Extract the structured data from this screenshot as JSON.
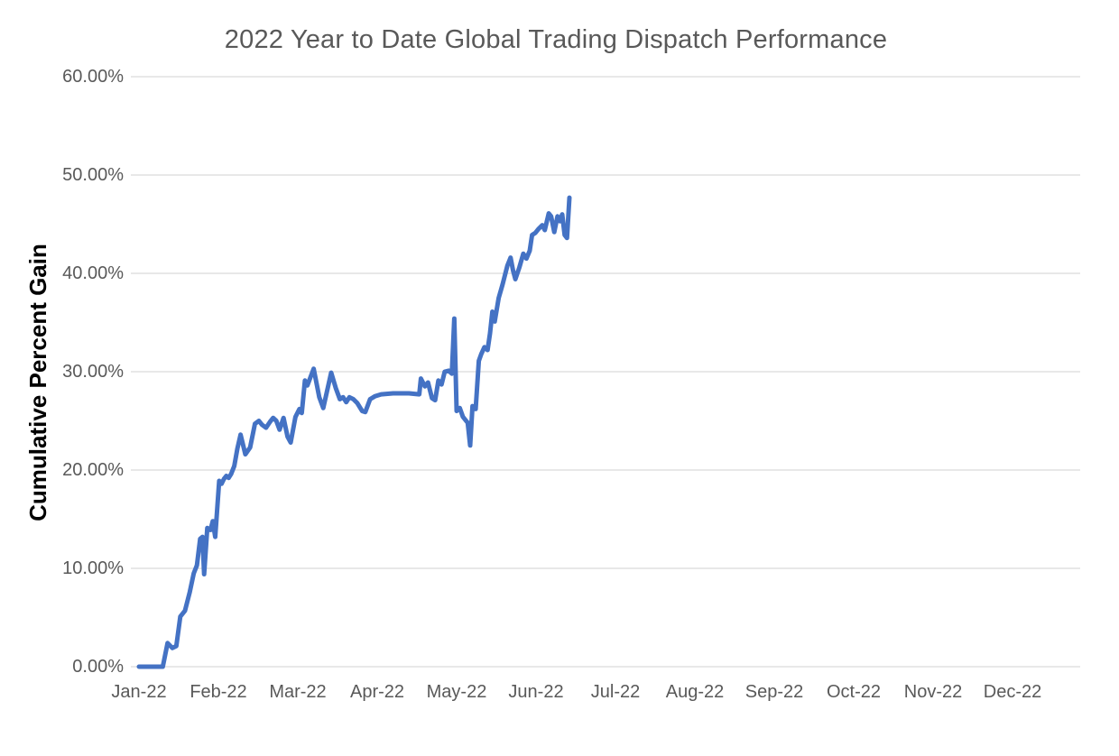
{
  "chart_data": {
    "type": "line",
    "title": "2022 Year to Date Global Trading Dispatch Performance",
    "ylabel": "Cumulative Percent Gain",
    "xlabel": "",
    "x_ticks": [
      "Jan-22",
      "Feb-22",
      "Mar-22",
      "Apr-22",
      "May-22",
      "Jun-22",
      "Jul-22",
      "Aug-22",
      "Sep-22",
      "Oct-22",
      "Nov-22",
      "Dec-22"
    ],
    "y_tick_labels": [
      "0.00%",
      "10.00%",
      "20.00%",
      "30.00%",
      "40.00%",
      "50.00%",
      "60.00%"
    ],
    "y_tick_values": [
      0,
      10,
      20,
      30,
      40,
      50,
      60
    ],
    "ylim": [
      0,
      60
    ],
    "x_unit": "months_since_jan_2022",
    "x_range_months": [
      0,
      11.85
    ],
    "grid": true,
    "legend": false,
    "colors": {
      "line": "#4472C4",
      "grid": "#D9D9D9",
      "title_text": "#595959",
      "tick_text": "#595959",
      "axis_title_text": "#000000",
      "background": "#FFFFFF"
    },
    "series": [
      {
        "name": "cumulative-percent-gain",
        "color": "#4472C4",
        "points": [
          [
            0.0,
            0.0
          ],
          [
            0.1,
            0.0
          ],
          [
            0.2,
            0.0
          ],
          [
            0.3,
            0.0
          ],
          [
            0.36,
            2.4
          ],
          [
            0.42,
            1.9
          ],
          [
            0.47,
            2.1
          ],
          [
            0.52,
            5.1
          ],
          [
            0.58,
            5.7
          ],
          [
            0.64,
            7.6
          ],
          [
            0.69,
            9.5
          ],
          [
            0.73,
            10.3
          ],
          [
            0.77,
            13.0
          ],
          [
            0.8,
            13.2
          ],
          [
            0.82,
            9.4
          ],
          [
            0.86,
            14.1
          ],
          [
            0.9,
            13.9
          ],
          [
            0.93,
            14.8
          ],
          [
            0.96,
            13.2
          ],
          [
            1.01,
            18.9
          ],
          [
            1.04,
            18.6
          ],
          [
            1.07,
            19.1
          ],
          [
            1.1,
            19.4
          ],
          [
            1.13,
            19.2
          ],
          [
            1.16,
            19.6
          ],
          [
            1.2,
            20.4
          ],
          [
            1.24,
            22.2
          ],
          [
            1.28,
            23.6
          ],
          [
            1.34,
            21.6
          ],
          [
            1.4,
            22.3
          ],
          [
            1.46,
            24.7
          ],
          [
            1.51,
            25.0
          ],
          [
            1.55,
            24.6
          ],
          [
            1.6,
            24.3
          ],
          [
            1.65,
            24.9
          ],
          [
            1.69,
            25.3
          ],
          [
            1.73,
            25.0
          ],
          [
            1.77,
            24.1
          ],
          [
            1.82,
            25.3
          ],
          [
            1.87,
            23.4
          ],
          [
            1.91,
            22.8
          ],
          [
            1.97,
            25.4
          ],
          [
            2.02,
            26.2
          ],
          [
            2.05,
            25.8
          ],
          [
            2.09,
            29.1
          ],
          [
            2.12,
            28.6
          ],
          [
            2.2,
            30.3
          ],
          [
            2.27,
            27.4
          ],
          [
            2.32,
            26.3
          ],
          [
            2.42,
            29.9
          ],
          [
            2.48,
            28.3
          ],
          [
            2.53,
            27.2
          ],
          [
            2.57,
            27.4
          ],
          [
            2.61,
            26.9
          ],
          [
            2.65,
            27.4
          ],
          [
            2.7,
            27.2
          ],
          [
            2.75,
            26.8
          ],
          [
            2.81,
            26.0
          ],
          [
            2.85,
            25.9
          ],
          [
            2.91,
            27.2
          ],
          [
            2.97,
            27.5
          ],
          [
            3.05,
            27.7
          ],
          [
            3.2,
            27.8
          ],
          [
            3.4,
            27.8
          ],
          [
            3.53,
            27.7
          ],
          [
            3.55,
            29.3
          ],
          [
            3.6,
            28.5
          ],
          [
            3.64,
            28.9
          ],
          [
            3.69,
            27.3
          ],
          [
            3.73,
            27.1
          ],
          [
            3.77,
            29.1
          ],
          [
            3.81,
            28.7
          ],
          [
            3.85,
            30.0
          ],
          [
            3.9,
            30.1
          ],
          [
            3.94,
            29.8
          ],
          [
            3.97,
            35.4
          ],
          [
            4.0,
            26.0
          ],
          [
            4.04,
            26.3
          ],
          [
            4.08,
            25.4
          ],
          [
            4.11,
            25.1
          ],
          [
            4.14,
            24.8
          ],
          [
            4.17,
            22.5
          ],
          [
            4.2,
            26.5
          ],
          [
            4.24,
            26.2
          ],
          [
            4.28,
            31.1
          ],
          [
            4.31,
            31.8
          ],
          [
            4.35,
            32.5
          ],
          [
            4.39,
            32.2
          ],
          [
            4.42,
            33.9
          ],
          [
            4.45,
            36.1
          ],
          [
            4.48,
            35.1
          ],
          [
            4.53,
            37.5
          ],
          [
            4.58,
            38.9
          ],
          [
            4.64,
            40.8
          ],
          [
            4.68,
            41.6
          ],
          [
            4.71,
            40.3
          ],
          [
            4.74,
            39.4
          ],
          [
            4.79,
            40.6
          ],
          [
            4.84,
            42.0
          ],
          [
            4.88,
            41.5
          ],
          [
            4.92,
            42.3
          ],
          [
            4.95,
            43.9
          ],
          [
            4.99,
            44.1
          ],
          [
            5.03,
            44.5
          ],
          [
            5.08,
            44.9
          ],
          [
            5.11,
            44.4
          ],
          [
            5.16,
            46.1
          ],
          [
            5.19,
            45.8
          ],
          [
            5.23,
            44.2
          ],
          [
            5.27,
            45.8
          ],
          [
            5.3,
            45.3
          ],
          [
            5.33,
            46.0
          ],
          [
            5.36,
            43.9
          ],
          [
            5.39,
            43.6
          ],
          [
            5.42,
            47.7
          ]
        ]
      }
    ]
  }
}
